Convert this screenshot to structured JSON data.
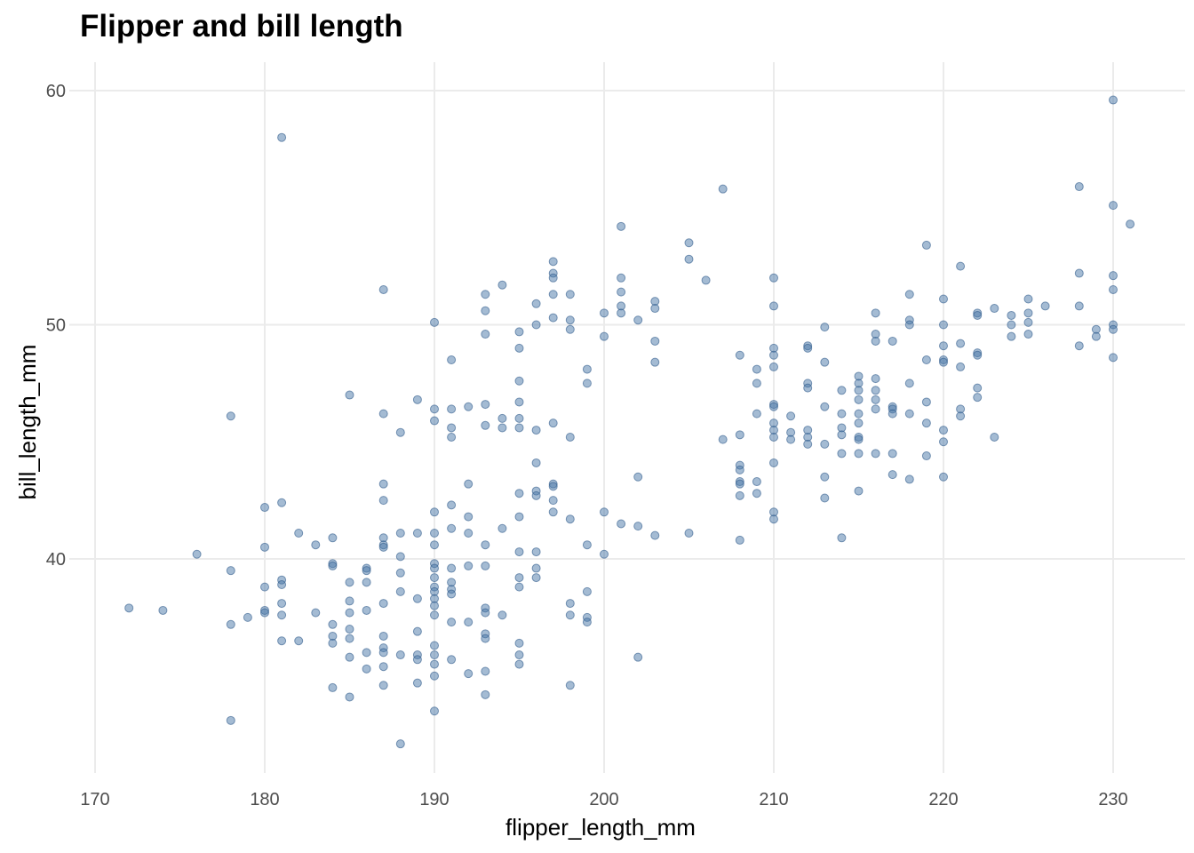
{
  "chart_data": {
    "type": "scatter",
    "title": "Flipper and bill length",
    "xlabel": "flipper_length_mm",
    "ylabel": "bill_length_mm",
    "xlim": [
      170,
      232
    ],
    "ylim": [
      31,
      61
    ],
    "xticks": [
      170,
      180,
      190,
      200,
      210,
      220,
      230
    ],
    "yticks": [
      40,
      50,
      60
    ],
    "grid": true,
    "point_color": "#4a78a8",
    "points": [
      [
        172,
        37.9
      ],
      [
        174,
        37.8
      ],
      [
        176,
        40.2
      ],
      [
        178,
        46.1
      ],
      [
        178,
        39.5
      ],
      [
        178,
        37.2
      ],
      [
        178,
        33.1
      ],
      [
        179,
        37.5
      ],
      [
        180,
        42.2
      ],
      [
        180,
        40.5
      ],
      [
        180,
        38.8
      ],
      [
        180,
        37.8
      ],
      [
        180,
        37.7
      ],
      [
        181,
        58.0
      ],
      [
        181,
        42.4
      ],
      [
        181,
        39.1
      ],
      [
        181,
        38.9
      ],
      [
        181,
        38.1
      ],
      [
        181,
        37.6
      ],
      [
        181,
        36.5
      ],
      [
        182,
        41.1
      ],
      [
        182,
        36.5
      ],
      [
        183,
        40.6
      ],
      [
        183,
        37.7
      ],
      [
        184,
        40.9
      ],
      [
        184,
        39.8
      ],
      [
        184,
        39.7
      ],
      [
        184,
        37.2
      ],
      [
        184,
        36.7
      ],
      [
        184,
        36.4
      ],
      [
        184,
        34.5
      ],
      [
        185,
        47.0
      ],
      [
        185,
        39.0
      ],
      [
        185,
        38.2
      ],
      [
        185,
        37.7
      ],
      [
        185,
        37.0
      ],
      [
        185,
        36.6
      ],
      [
        185,
        35.8
      ],
      [
        185,
        34.1
      ],
      [
        186,
        39.6
      ],
      [
        186,
        39.5
      ],
      [
        186,
        39.0
      ],
      [
        186,
        37.8
      ],
      [
        186,
        36.0
      ],
      [
        186,
        35.3
      ],
      [
        187,
        51.5
      ],
      [
        187,
        46.2
      ],
      [
        187,
        43.2
      ],
      [
        187,
        42.5
      ],
      [
        187,
        40.9
      ],
      [
        187,
        40.6
      ],
      [
        187,
        40.5
      ],
      [
        187,
        38.1
      ],
      [
        187,
        36.7
      ],
      [
        187,
        36.2
      ],
      [
        187,
        36.0
      ],
      [
        187,
        35.4
      ],
      [
        187,
        34.6
      ],
      [
        188,
        45.4
      ],
      [
        188,
        41.1
      ],
      [
        188,
        40.1
      ],
      [
        188,
        39.4
      ],
      [
        188,
        38.6
      ],
      [
        188,
        35.9
      ],
      [
        188,
        32.1
      ],
      [
        189,
        46.8
      ],
      [
        189,
        41.1
      ],
      [
        189,
        38.3
      ],
      [
        189,
        36.9
      ],
      [
        189,
        35.9
      ],
      [
        189,
        35.7
      ],
      [
        189,
        34.7
      ],
      [
        190,
        50.1
      ],
      [
        190,
        46.4
      ],
      [
        190,
        45.9
      ],
      [
        190,
        42.0
      ],
      [
        190,
        41.1
      ],
      [
        190,
        40.6
      ],
      [
        190,
        39.8
      ],
      [
        190,
        39.6
      ],
      [
        190,
        39.2
      ],
      [
        190,
        38.8
      ],
      [
        190,
        38.6
      ],
      [
        190,
        38.3
      ],
      [
        190,
        38.0
      ],
      [
        190,
        37.6
      ],
      [
        190,
        36.3
      ],
      [
        190,
        35.9
      ],
      [
        190,
        35.5
      ],
      [
        190,
        35.0
      ],
      [
        190,
        33.5
      ],
      [
        191,
        48.5
      ],
      [
        191,
        46.4
      ],
      [
        191,
        45.6
      ],
      [
        191,
        45.2
      ],
      [
        191,
        42.3
      ],
      [
        191,
        41.3
      ],
      [
        191,
        39.6
      ],
      [
        191,
        39.0
      ],
      [
        191,
        38.7
      ],
      [
        191,
        38.5
      ],
      [
        191,
        37.3
      ],
      [
        191,
        35.7
      ],
      [
        192,
        46.5
      ],
      [
        192,
        43.2
      ],
      [
        192,
        41.8
      ],
      [
        192,
        41.1
      ],
      [
        192,
        39.7
      ],
      [
        192,
        37.3
      ],
      [
        192,
        35.1
      ],
      [
        193,
        51.3
      ],
      [
        193,
        50.6
      ],
      [
        193,
        49.6
      ],
      [
        193,
        46.6
      ],
      [
        193,
        45.7
      ],
      [
        193,
        40.6
      ],
      [
        193,
        39.7
      ],
      [
        193,
        37.9
      ],
      [
        193,
        37.7
      ],
      [
        193,
        36.8
      ],
      [
        193,
        36.6
      ],
      [
        193,
        35.2
      ],
      [
        193,
        34.2
      ],
      [
        194,
        51.7
      ],
      [
        194,
        46.0
      ],
      [
        194,
        45.6
      ],
      [
        194,
        41.3
      ],
      [
        194,
        37.6
      ],
      [
        195,
        49.7
      ],
      [
        195,
        49.0
      ],
      [
        195,
        47.6
      ],
      [
        195,
        46.7
      ],
      [
        195,
        46.0
      ],
      [
        195,
        45.6
      ],
      [
        195,
        42.8
      ],
      [
        195,
        41.8
      ],
      [
        195,
        40.3
      ],
      [
        195,
        39.2
      ],
      [
        195,
        38.8
      ],
      [
        195,
        36.4
      ],
      [
        195,
        35.9
      ],
      [
        195,
        35.5
      ],
      [
        196,
        50.9
      ],
      [
        196,
        50.0
      ],
      [
        196,
        45.5
      ],
      [
        196,
        44.1
      ],
      [
        196,
        42.9
      ],
      [
        196,
        42.7
      ],
      [
        196,
        40.3
      ],
      [
        196,
        39.6
      ],
      [
        196,
        39.2
      ],
      [
        197,
        52.7
      ],
      [
        197,
        52.2
      ],
      [
        197,
        52.0
      ],
      [
        197,
        51.3
      ],
      [
        197,
        50.3
      ],
      [
        197,
        45.8
      ],
      [
        197,
        43.2
      ],
      [
        197,
        43.1
      ],
      [
        197,
        42.5
      ],
      [
        197,
        42.0
      ],
      [
        198,
        51.3
      ],
      [
        198,
        50.2
      ],
      [
        198,
        49.8
      ],
      [
        198,
        45.2
      ],
      [
        198,
        41.7
      ],
      [
        198,
        38.1
      ],
      [
        198,
        37.6
      ],
      [
        198,
        34.6
      ],
      [
        199,
        48.1
      ],
      [
        199,
        47.5
      ],
      [
        199,
        40.6
      ],
      [
        199,
        38.6
      ],
      [
        199,
        37.5
      ],
      [
        199,
        37.3
      ],
      [
        200,
        50.5
      ],
      [
        200,
        49.5
      ],
      [
        200,
        42.0
      ],
      [
        200,
        40.2
      ],
      [
        201,
        54.2
      ],
      [
        201,
        52.0
      ],
      [
        201,
        51.4
      ],
      [
        201,
        50.8
      ],
      [
        201,
        50.5
      ],
      [
        201,
        41.5
      ],
      [
        202,
        50.2
      ],
      [
        202,
        43.5
      ],
      [
        202,
        41.4
      ],
      [
        202,
        35.8
      ],
      [
        203,
        51.0
      ],
      [
        203,
        50.7
      ],
      [
        203,
        49.3
      ],
      [
        203,
        48.4
      ],
      [
        203,
        41.0
      ],
      [
        205,
        53.5
      ],
      [
        205,
        52.8
      ],
      [
        205,
        41.1
      ],
      [
        206,
        51.9
      ],
      [
        207,
        55.8
      ],
      [
        207,
        45.1
      ],
      [
        208,
        48.7
      ],
      [
        208,
        45.3
      ],
      [
        208,
        44.0
      ],
      [
        208,
        43.8
      ],
      [
        208,
        43.3
      ],
      [
        208,
        43.2
      ],
      [
        208,
        42.7
      ],
      [
        208,
        40.8
      ],
      [
        209,
        48.1
      ],
      [
        209,
        47.5
      ],
      [
        209,
        46.2
      ],
      [
        209,
        43.3
      ],
      [
        209,
        42.8
      ],
      [
        210,
        52.0
      ],
      [
        210,
        50.8
      ],
      [
        210,
        49.0
      ],
      [
        210,
        48.7
      ],
      [
        210,
        48.2
      ],
      [
        210,
        46.6
      ],
      [
        210,
        46.5
      ],
      [
        210,
        45.8
      ],
      [
        210,
        45.5
      ],
      [
        210,
        45.2
      ],
      [
        210,
        44.1
      ],
      [
        210,
        42.0
      ],
      [
        210,
        41.7
      ],
      [
        211,
        46.1
      ],
      [
        211,
        45.4
      ],
      [
        211,
        45.1
      ],
      [
        212,
        49.1
      ],
      [
        212,
        49.0
      ],
      [
        212,
        47.5
      ],
      [
        212,
        47.3
      ],
      [
        212,
        45.5
      ],
      [
        212,
        45.2
      ],
      [
        212,
        44.9
      ],
      [
        213,
        49.9
      ],
      [
        213,
        48.4
      ],
      [
        213,
        46.5
      ],
      [
        213,
        44.9
      ],
      [
        213,
        43.5
      ],
      [
        213,
        42.6
      ],
      [
        214,
        47.2
      ],
      [
        214,
        46.2
      ],
      [
        214,
        45.6
      ],
      [
        214,
        45.3
      ],
      [
        214,
        44.5
      ],
      [
        214,
        40.9
      ],
      [
        215,
        47.8
      ],
      [
        215,
        47.5
      ],
      [
        215,
        47.2
      ],
      [
        215,
        46.8
      ],
      [
        215,
        46.2
      ],
      [
        215,
        45.8
      ],
      [
        215,
        45.2
      ],
      [
        215,
        45.1
      ],
      [
        215,
        44.5
      ],
      [
        215,
        42.9
      ],
      [
        216,
        50.5
      ],
      [
        216,
        49.6
      ],
      [
        216,
        49.3
      ],
      [
        216,
        47.7
      ],
      [
        216,
        47.2
      ],
      [
        216,
        46.8
      ],
      [
        216,
        46.4
      ],
      [
        216,
        44.5
      ],
      [
        217,
        49.3
      ],
      [
        217,
        46.5
      ],
      [
        217,
        46.4
      ],
      [
        217,
        46.2
      ],
      [
        217,
        44.5
      ],
      [
        217,
        43.6
      ],
      [
        218,
        51.3
      ],
      [
        218,
        50.2
      ],
      [
        218,
        50.0
      ],
      [
        218,
        47.5
      ],
      [
        218,
        46.2
      ],
      [
        218,
        43.4
      ],
      [
        219,
        53.4
      ],
      [
        219,
        48.5
      ],
      [
        219,
        46.7
      ],
      [
        219,
        45.8
      ],
      [
        219,
        44.4
      ],
      [
        220,
        51.1
      ],
      [
        220,
        50.0
      ],
      [
        220,
        49.1
      ],
      [
        220,
        48.5
      ],
      [
        220,
        48.4
      ],
      [
        220,
        45.5
      ],
      [
        220,
        45.0
      ],
      [
        220,
        43.5
      ],
      [
        221,
        52.5
      ],
      [
        221,
        49.2
      ],
      [
        221,
        48.2
      ],
      [
        221,
        46.4
      ],
      [
        221,
        46.1
      ],
      [
        222,
        50.5
      ],
      [
        222,
        50.4
      ],
      [
        222,
        48.8
      ],
      [
        222,
        48.7
      ],
      [
        222,
        47.3
      ],
      [
        222,
        46.9
      ],
      [
        223,
        50.7
      ],
      [
        223,
        45.2
      ],
      [
        224,
        50.4
      ],
      [
        224,
        50.0
      ],
      [
        224,
        49.5
      ],
      [
        225,
        51.1
      ],
      [
        225,
        50.5
      ],
      [
        225,
        50.1
      ],
      [
        225,
        49.6
      ],
      [
        226,
        50.8
      ],
      [
        228,
        55.9
      ],
      [
        228,
        52.2
      ],
      [
        228,
        50.8
      ],
      [
        228,
        49.1
      ],
      [
        229,
        49.8
      ],
      [
        229,
        49.5
      ],
      [
        230,
        59.6
      ],
      [
        230,
        55.1
      ],
      [
        230,
        52.1
      ],
      [
        230,
        51.5
      ],
      [
        230,
        50.0
      ],
      [
        230,
        49.8
      ],
      [
        230,
        48.6
      ],
      [
        231,
        54.3
      ]
    ]
  }
}
